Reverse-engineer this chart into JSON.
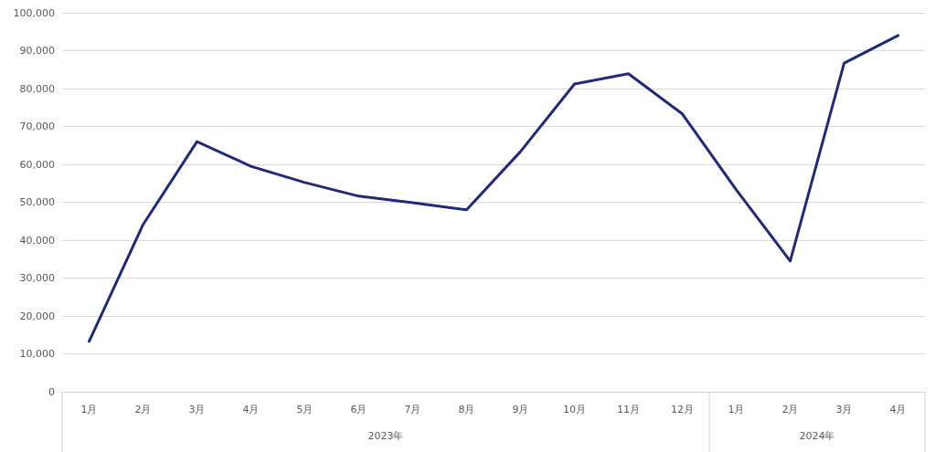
{
  "chart_data": {
    "type": "line",
    "categories": [
      "1月",
      "2月",
      "3月",
      "4月",
      "5月",
      "6月",
      "7月",
      "8月",
      "9月",
      "10月",
      "11月",
      "12月",
      "1月",
      "2月",
      "3月",
      "4月"
    ],
    "series": [
      {
        "color": "#1f2a7a",
        "values": [
          13300,
          44100,
          66000,
          59500,
          55200,
          51600,
          49900,
          48000,
          63400,
          81200,
          83900,
          73300,
          53300,
          34500,
          86700,
          94000
        ]
      }
    ],
    "annotations": [
      "2023年",
      "2024年"
    ],
    "ylim": [
      0,
      100000
    ],
    "yticks": [
      0,
      {
        "value": 10000,
        "label": "10,000"
      },
      {
        "value": 20000,
        "label": "20,000"
      },
      {
        "value": 30000,
        "label": "30,000"
      },
      {
        "value": 40000,
        "label": "40,000"
      },
      {
        "value": 50000,
        "label": "50,000"
      },
      {
        "value": 60000,
        "label": "60,000"
      },
      {
        "value": 70000,
        "label": "70,000"
      },
      {
        "value": 80000,
        "label": "80,000"
      },
      {
        "value": 90000,
        "label": "90,000"
      },
      {
        "value": 100000,
        "label": "100,000"
      }
    ],
    "grid": "y",
    "legend": false,
    "marker": "none",
    "line_style": "solid"
  }
}
